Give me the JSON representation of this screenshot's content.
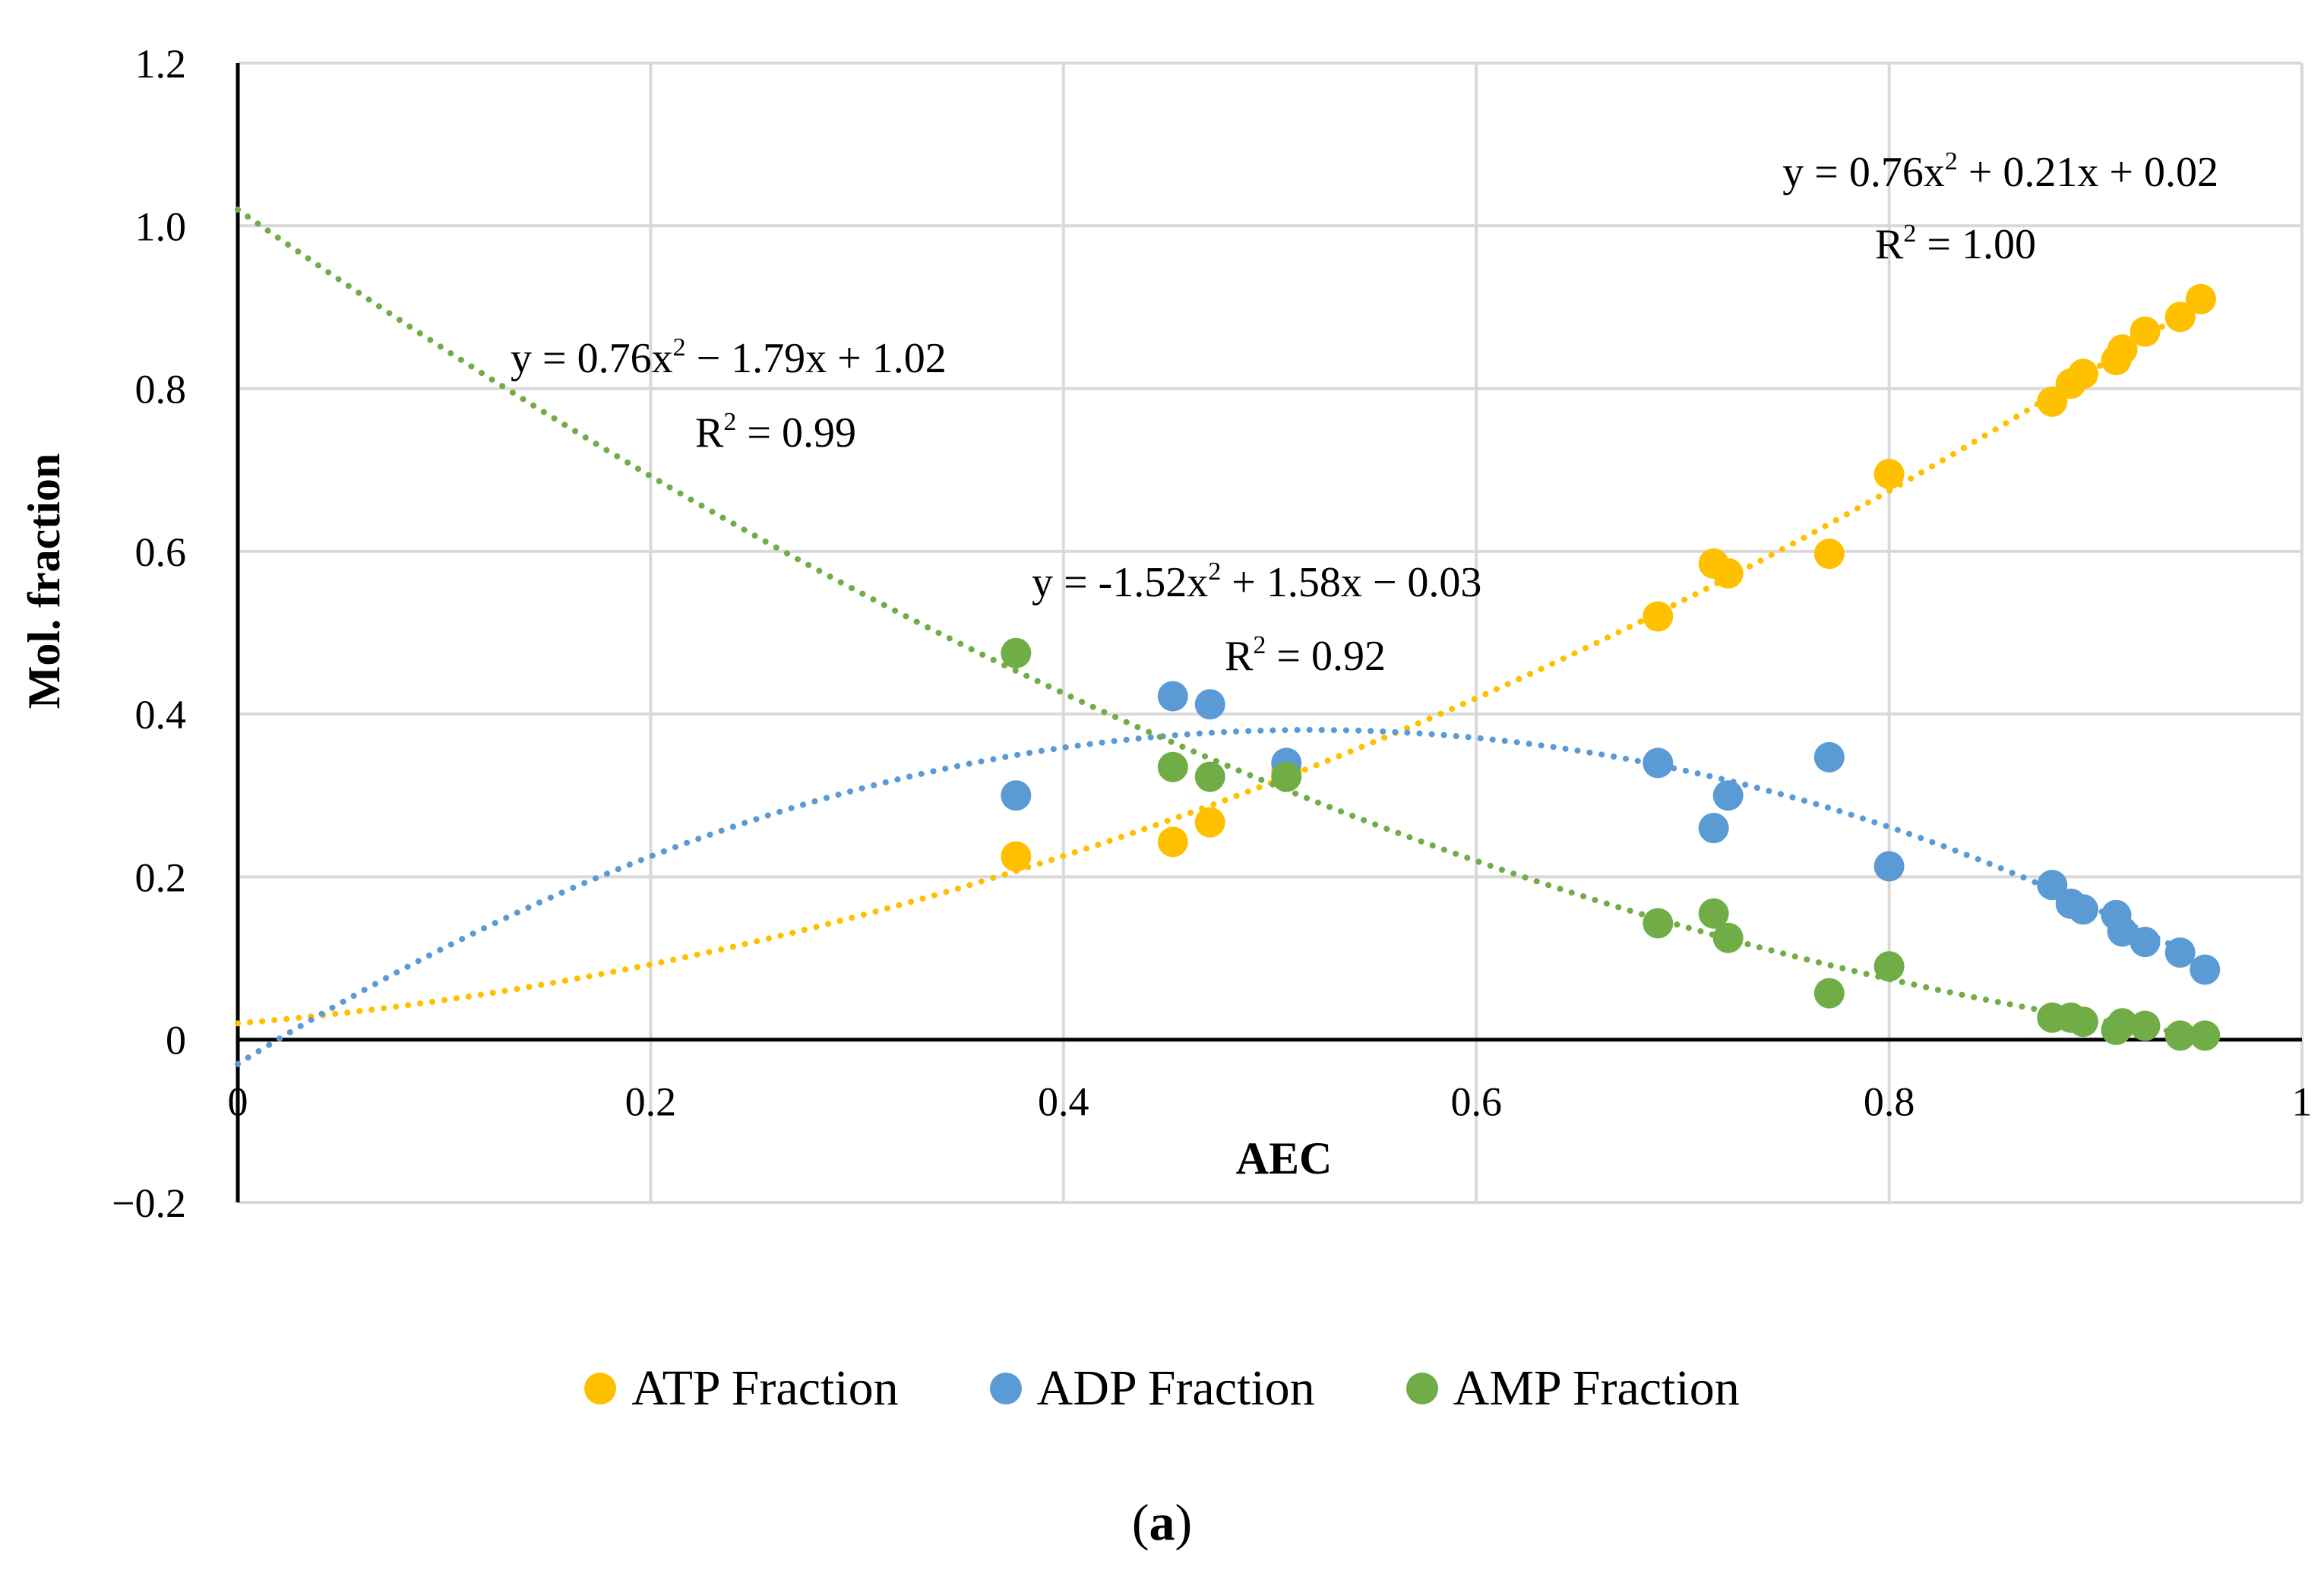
{
  "chart_data": {
    "type": "scatter",
    "xlabel": "AEC",
    "ylabel": "Mol. fraction",
    "xlim": [
      0,
      1
    ],
    "ylim": [
      -0.2,
      1.2
    ],
    "x_ticks": [
      0,
      0.2,
      0.4,
      0.6,
      0.8,
      1
    ],
    "x_tick_labels": [
      "0",
      "0.2",
      "0.4",
      "0.6",
      "0.8",
      "1"
    ],
    "y_ticks": [
      -0.2,
      0,
      0.2,
      0.4,
      0.6,
      0.8,
      1.0,
      1.2
    ],
    "y_tick_labels": [
      "−0.2",
      "0",
      "0.2",
      "0.4",
      "0.6",
      "0.8",
      "1.0",
      "1.2"
    ],
    "grid": true,
    "legend_position": "bottom",
    "series": [
      {
        "name": "ATP Fraction",
        "color": "#FFC000",
        "x": [
          0.377,
          0.453,
          0.471,
          0.508,
          0.688,
          0.715,
          0.722,
          0.771,
          0.8,
          0.879,
          0.888,
          0.894,
          0.91,
          0.913,
          0.924,
          0.941,
          0.951
        ],
        "y": [
          0.225,
          0.243,
          0.267,
          0.33,
          0.52,
          0.585,
          0.573,
          0.597,
          0.695,
          0.784,
          0.806,
          0.818,
          0.835,
          0.848,
          0.87,
          0.888,
          0.91
        ],
        "trendline": {
          "type": "poly2",
          "coefficients": [
            0.76,
            0.21,
            0.02
          ],
          "equation_main": "y = 0.76x",
          "equation_exp": "2",
          "equation_rest": " + 0.21x + 0.02",
          "r2_main": "R",
          "r2_exp": "2",
          "r2_rest": " = 1.00"
        }
      },
      {
        "name": "ADP Fraction",
        "color": "#5B9BD5",
        "x": [
          0.377,
          0.453,
          0.471,
          0.508,
          0.688,
          0.715,
          0.722,
          0.771,
          0.8,
          0.879,
          0.888,
          0.894,
          0.91,
          0.913,
          0.924,
          0.941,
          0.953
        ],
        "y": [
          0.3,
          0.422,
          0.412,
          0.34,
          0.34,
          0.26,
          0.3,
          0.347,
          0.213,
          0.19,
          0.167,
          0.16,
          0.153,
          0.133,
          0.12,
          0.107,
          0.086
        ],
        "trendline": {
          "type": "poly2",
          "coefficients": [
            -1.52,
            1.58,
            -0.03
          ],
          "equation_main": "y = -1.52x",
          "equation_exp": "2",
          "equation_rest": " + 1.58x − 0.03",
          "r2_main": "R",
          "r2_exp": "2",
          "r2_rest": " = 0.92"
        }
      },
      {
        "name": "AMP Fraction",
        "color": "#70AD47",
        "x": [
          0.377,
          0.453,
          0.471,
          0.508,
          0.688,
          0.715,
          0.722,
          0.771,
          0.8,
          0.879,
          0.888,
          0.894,
          0.91,
          0.913,
          0.924,
          0.941,
          0.953
        ],
        "y": [
          0.475,
          0.335,
          0.323,
          0.323,
          0.143,
          0.155,
          0.125,
          0.057,
          0.09,
          0.027,
          0.027,
          0.022,
          0.012,
          0.02,
          0.017,
          0.005,
          0.005
        ],
        "trendline": {
          "type": "poly2",
          "coefficients": [
            0.76,
            -1.79,
            1.02
          ],
          "equation_main": "y = 0.76x",
          "equation_exp": "2",
          "equation_rest": " − 1.79x + 1.02",
          "r2_main": "R",
          "r2_exp": "2",
          "r2_rest": " = 0.99"
        }
      }
    ]
  },
  "caption": {
    "open": "(",
    "letter": "a",
    "close": ")"
  }
}
